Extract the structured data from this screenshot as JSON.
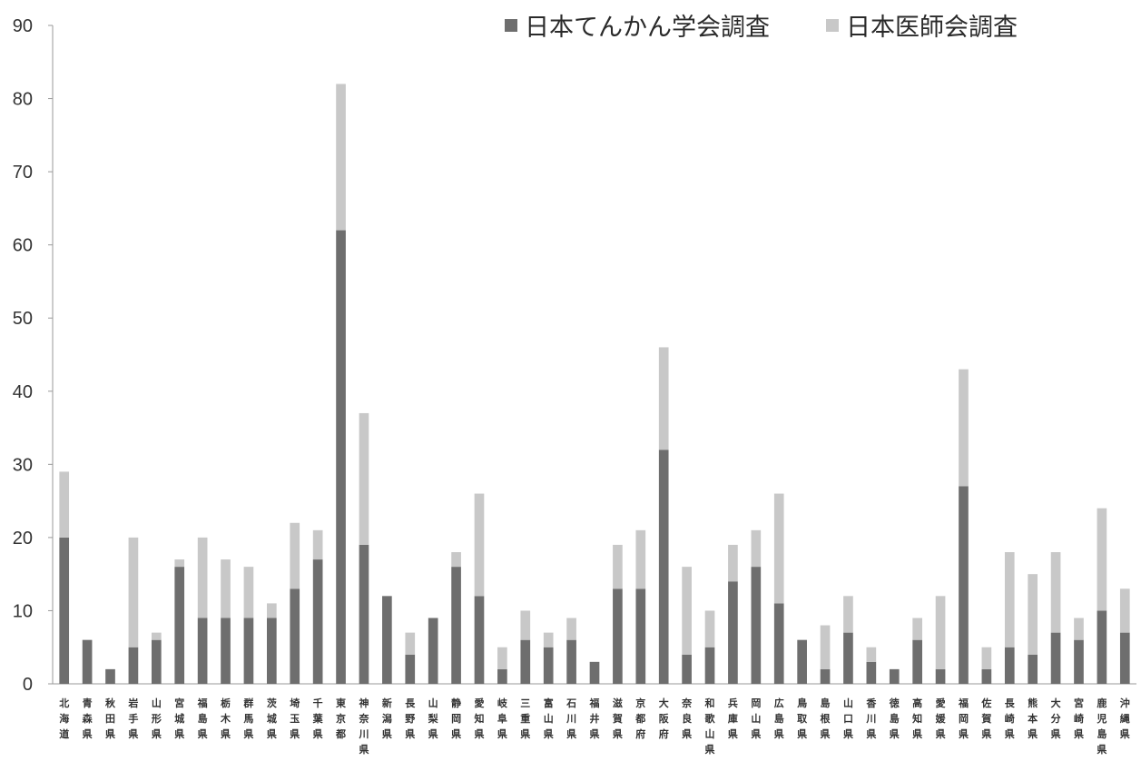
{
  "chart_data": {
    "type": "bar",
    "stacked": true,
    "categories": [
      "北海道",
      "青森県",
      "秋田県",
      "岩手県",
      "山形県",
      "宮城県",
      "福島県",
      "栃木県",
      "群馬県",
      "茨城県",
      "埼玉県",
      "千葉県",
      "東京都",
      "神奈川県",
      "新潟県",
      "長野県",
      "山梨県",
      "静岡県",
      "愛知県",
      "岐阜県",
      "三重県",
      "富山県",
      "石川県",
      "福井県",
      "滋賀県",
      "京都府",
      "大阪府",
      "奈良県",
      "和歌山県",
      "兵庫県",
      "岡山県",
      "広島県",
      "鳥取県",
      "島根県",
      "山口県",
      "香川県",
      "徳島県",
      "高知県",
      "愛媛県",
      "福岡県",
      "佐賀県",
      "長崎県",
      "熊本県",
      "大分県",
      "宮崎県",
      "鹿児島県",
      "沖縄県"
    ],
    "series": [
      {
        "name": "日本てんかん学会調査",
        "color": "#6e6e6e",
        "values": [
          20,
          6,
          2,
          5,
          6,
          16,
          9,
          9,
          9,
          9,
          13,
          17,
          62,
          19,
          12,
          4,
          9,
          16,
          12,
          2,
          6,
          5,
          6,
          3,
          13,
          13,
          32,
          4,
          5,
          14,
          16,
          11,
          6,
          2,
          7,
          3,
          2,
          6,
          2,
          27,
          2,
          5,
          4,
          7,
          6,
          10,
          7
        ]
      },
      {
        "name": "日本医師会調査",
        "color": "#c8c8c8",
        "values": [
          9,
          0,
          0,
          15,
          1,
          1,
          11,
          8,
          7,
          2,
          9,
          4,
          20,
          18,
          0,
          3,
          0,
          2,
          14,
          3,
          4,
          2,
          3,
          0,
          6,
          8,
          14,
          12,
          5,
          5,
          5,
          15,
          0,
          6,
          5,
          2,
          0,
          3,
          10,
          16,
          3,
          13,
          11,
          11,
          3,
          14,
          6
        ]
      }
    ],
    "ylim": [
      0,
      90
    ],
    "yticks": [
      0,
      10,
      20,
      30,
      40,
      50,
      60,
      70,
      80,
      90
    ],
    "legend_position": "top-right",
    "grid": false
  }
}
